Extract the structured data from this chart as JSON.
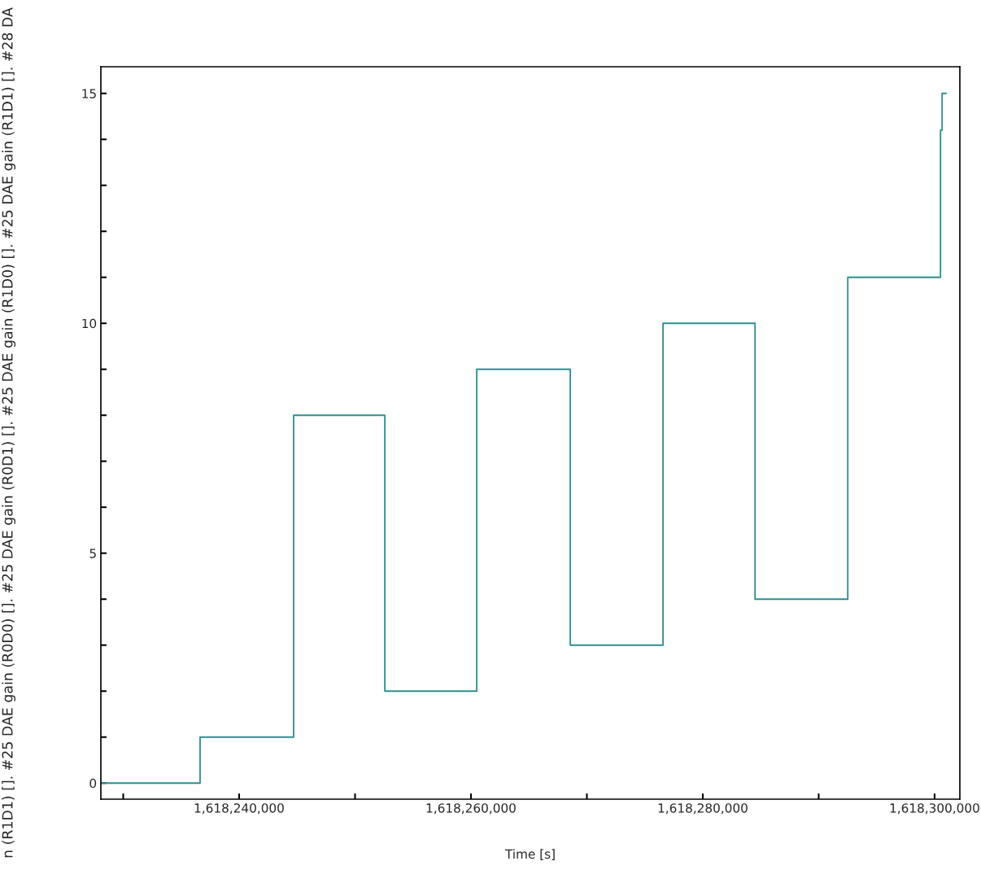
{
  "chart_data": {
    "type": "step",
    "xlabel": "Time [s]",
    "ylabel": "n (R1D1) []. #25 DAE gain (R0D0) []. #25 DAE gain (R0D1) []. #25 DAE gain (R1D0) []. #25 DAE gain (R1D1) []. #28 DA",
    "series": [
      {
        "color": "#2a8f8f",
        "x": [
          1618228100,
          1618236630,
          1618244700,
          1618252570,
          1618260500,
          1618268570,
          1618276570,
          1618284510,
          1618292510,
          1618300510,
          1618300650,
          1618301000
        ],
        "values": [
          0,
          1,
          8,
          2,
          9,
          3,
          10,
          4,
          11,
          14.2,
          15,
          15
        ]
      }
    ],
    "xlim": [
      1618228070,
      1618302180
    ],
    "ylim": [
      -0.35,
      15.58
    ],
    "xticks": [
      {
        "value": 1618230000,
        "label": null
      },
      {
        "value": 1618240000,
        "label": "1,618,240,000"
      },
      {
        "value": 1618250000,
        "label": null
      },
      {
        "value": 1618260000,
        "label": "1,618,260,000"
      },
      {
        "value": 1618270000,
        "label": null
      },
      {
        "value": 1618280000,
        "label": "1,618,280,000"
      },
      {
        "value": 1618290000,
        "label": null
      },
      {
        "value": 1618300000,
        "label": "1,618,300,000"
      }
    ],
    "yticks": [
      0,
      {
        "value": 1,
        "label": null
      },
      {
        "value": 2,
        "label": null
      },
      {
        "value": 3,
        "label": null
      },
      {
        "value": 4,
        "label": null
      },
      5,
      {
        "value": 6,
        "label": null
      },
      {
        "value": 7,
        "label": null
      },
      {
        "value": 8,
        "label": null
      },
      {
        "value": 9,
        "label": null
      },
      10,
      {
        "value": 11,
        "label": null
      },
      {
        "value": 12,
        "label": null
      },
      {
        "value": 13,
        "label": null
      },
      {
        "value": 14,
        "label": null
      },
      15
    ],
    "grid": false,
    "marker": "none",
    "line_style": "solid"
  }
}
